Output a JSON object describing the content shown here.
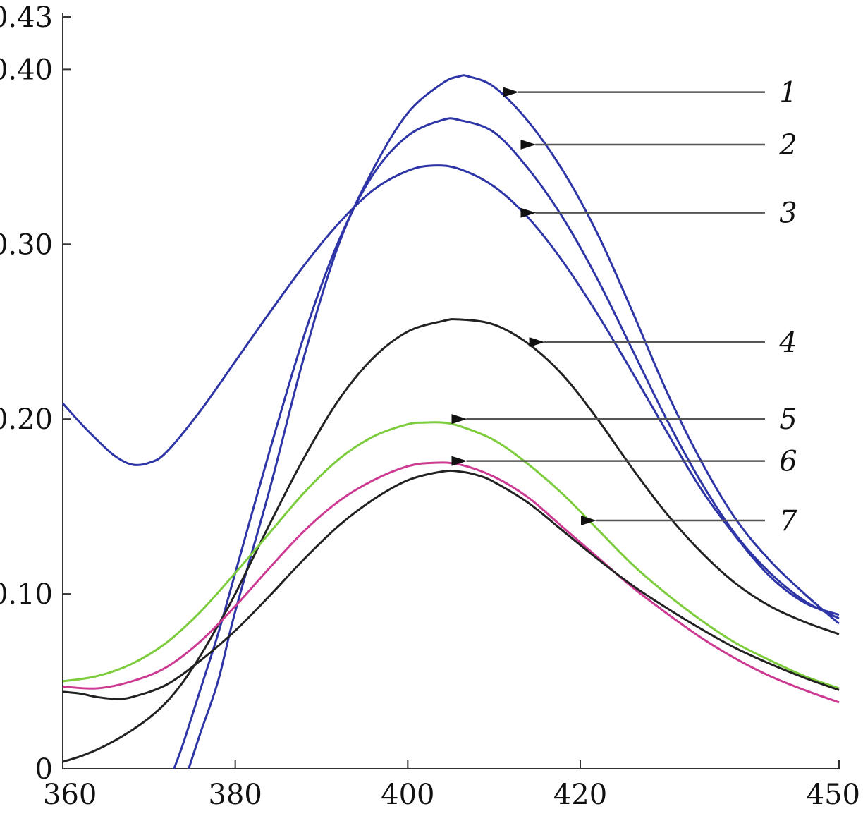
{
  "chart_data": {
    "type": "line",
    "title": "",
    "xlabel": "",
    "ylabel": "",
    "xlim": [
      360,
      450
    ],
    "ylim": [
      0,
      0.43
    ],
    "x_ticks": [
      {
        "value": 360,
        "label": "360"
      },
      {
        "value": 380,
        "label": "380"
      },
      {
        "value": 400,
        "label": "400"
      },
      {
        "value": 420,
        "label": "420"
      },
      {
        "value": 450,
        "label": "450"
      }
    ],
    "y_ticks": [
      {
        "value": 0,
        "label": "0"
      },
      {
        "value": 0.1,
        "label": "0.10"
      },
      {
        "value": 0.2,
        "label": "0.20"
      },
      {
        "value": 0.3,
        "label": "0.30"
      },
      {
        "value": 0.4,
        "label": "0.40"
      },
      {
        "value": 0.43,
        "label": "0.43"
      }
    ],
    "grid": false,
    "legend": "curve labels with arrows at right",
    "series": [
      {
        "name": "1",
        "color": "#2e35a6",
        "arrow_at": [
          411,
          0.387
        ],
        "x": [
          374.6,
          376,
          378,
          380,
          384,
          388,
          392,
          396,
          400,
          404,
          406,
          407,
          410,
          414,
          418,
          422,
          426,
          430,
          434,
          438,
          442,
          446,
          450
        ],
        "y": [
          0,
          0.021,
          0.05,
          0.09,
          0.16,
          0.236,
          0.3,
          0.343,
          0.375,
          0.392,
          0.396,
          0.396,
          0.39,
          0.37,
          0.342,
          0.306,
          0.262,
          0.216,
          0.176,
          0.143,
          0.119,
          0.1,
          0.083
        ]
      },
      {
        "name": "2",
        "color": "#2e35a6",
        "arrow_at": [
          413,
          0.357
        ],
        "x": [
          372.9,
          374,
          376,
          378,
          380,
          384,
          388,
          392,
          396,
          400,
          404,
          406,
          410,
          414,
          418,
          422,
          426,
          430,
          434,
          438,
          442,
          446,
          450
        ],
        "y": [
          0,
          0.015,
          0.046,
          0.077,
          0.112,
          0.182,
          0.248,
          0.302,
          0.34,
          0.362,
          0.371,
          0.371,
          0.364,
          0.343,
          0.315,
          0.28,
          0.24,
          0.2,
          0.164,
          0.134,
          0.112,
          0.096,
          0.086
        ]
      },
      {
        "name": "3",
        "color": "#2e35a6",
        "arrow_at": [
          413,
          0.318
        ],
        "x": [
          360,
          362,
          364,
          366,
          368,
          370,
          372,
          376,
          380,
          384,
          388,
          392,
          396,
          400,
          403,
          406,
          410,
          414,
          418,
          422,
          426,
          430,
          434,
          438,
          442,
          446,
          450
        ],
        "y": [
          0.209,
          0.198,
          0.188,
          0.179,
          0.174,
          0.175,
          0.181,
          0.205,
          0.233,
          0.261,
          0.288,
          0.312,
          0.331,
          0.342,
          0.345,
          0.343,
          0.333,
          0.315,
          0.29,
          0.26,
          0.227,
          0.193,
          0.16,
          0.133,
          0.11,
          0.095,
          0.088
        ]
      },
      {
        "name": "4",
        "color": "#222222",
        "arrow_at": [
          414,
          0.244
        ],
        "x": [
          360,
          362,
          364,
          366,
          368,
          370,
          372,
          374,
          376,
          378,
          380,
          384,
          388,
          392,
          396,
          400,
          404,
          406,
          410,
          414,
          418,
          422,
          426,
          430,
          434,
          438,
          442,
          446,
          450
        ],
        "y": [
          0.004,
          0.007,
          0.011,
          0.016,
          0.022,
          0.029,
          0.038,
          0.05,
          0.065,
          0.082,
          0.1,
          0.14,
          0.178,
          0.211,
          0.235,
          0.25,
          0.256,
          0.257,
          0.254,
          0.243,
          0.225,
          0.2,
          0.172,
          0.146,
          0.124,
          0.106,
          0.093,
          0.084,
          0.077
        ]
      },
      {
        "name": "5",
        "color": "#7ccc3c",
        "arrow_at": [
          405,
          0.2
        ],
        "x": [
          360,
          364,
          368,
          372,
          376,
          380,
          384,
          388,
          392,
          396,
          400,
          402,
          404,
          406,
          410,
          414,
          418,
          422,
          426,
          430,
          434,
          438,
          442,
          446,
          450
        ],
        "y": [
          0.05,
          0.053,
          0.06,
          0.072,
          0.09,
          0.112,
          0.135,
          0.158,
          0.177,
          0.19,
          0.197,
          0.198,
          0.198,
          0.196,
          0.188,
          0.174,
          0.157,
          0.137,
          0.117,
          0.1,
          0.085,
          0.072,
          0.062,
          0.053,
          0.046
        ]
      },
      {
        "name": "6",
        "color": "#cc3a92",
        "arrow_at": [
          405,
          0.176
        ],
        "x": [
          360,
          364,
          368,
          372,
          376,
          380,
          384,
          388,
          392,
          396,
          400,
          403,
          406,
          410,
          414,
          418,
          422,
          426,
          430,
          434,
          438,
          442,
          446,
          450
        ],
        "y": [
          0.047,
          0.046,
          0.05,
          0.058,
          0.073,
          0.093,
          0.115,
          0.136,
          0.153,
          0.165,
          0.173,
          0.175,
          0.174,
          0.167,
          0.155,
          0.138,
          0.121,
          0.104,
          0.089,
          0.075,
          0.063,
          0.053,
          0.045,
          0.038
        ]
      },
      {
        "name": "7",
        "color": "#222222",
        "arrow_at": [
          420,
          0.142
        ],
        "x": [
          360,
          362,
          364,
          366,
          368,
          372,
          376,
          380,
          384,
          388,
          392,
          396,
          400,
          404,
          406,
          408,
          410,
          414,
          418,
          422,
          426,
          430,
          434,
          438,
          442,
          446,
          450
        ],
        "y": [
          0.044,
          0.043,
          0.041,
          0.04,
          0.041,
          0.048,
          0.062,
          0.079,
          0.099,
          0.12,
          0.139,
          0.154,
          0.165,
          0.17,
          0.17,
          0.168,
          0.164,
          0.152,
          0.136,
          0.12,
          0.105,
          0.092,
          0.08,
          0.069,
          0.06,
          0.052,
          0.045
        ]
      }
    ]
  }
}
